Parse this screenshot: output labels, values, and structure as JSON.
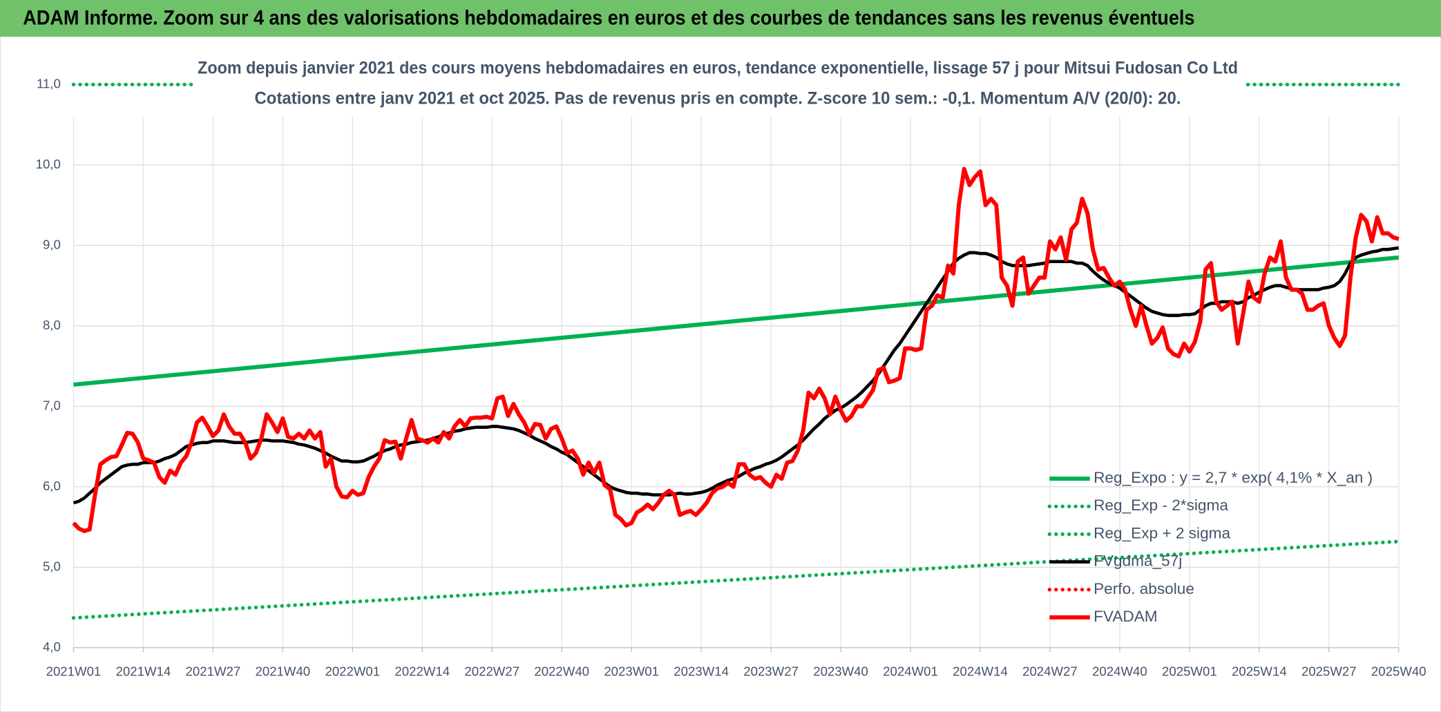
{
  "chart_data": {
    "type": "line",
    "title": "ADAM Informe. Zoom sur 4 ans des valorisations hebdomadaires en euros et des courbes de tendances sans les revenus éventuels",
    "subtitle": [
      "Zoom depuis janvier 2021 des cours moyens hebdomadaires en euros, tendance exponentielle, lissage 57 j pour Mitsui Fudosan Co Ltd",
      "Cotations entre janv 2021 et oct 2025. Pas de revenus pris en compte. Z-score 10 sem.: -0,1. Momentum A/V (20/0): 20."
    ],
    "categories": [
      "2021W01",
      null,
      null,
      null,
      null,
      null,
      null,
      null,
      null,
      null,
      null,
      null,
      null,
      "2021W14",
      null,
      null,
      null,
      null,
      null,
      null,
      null,
      null,
      null,
      null,
      null,
      null,
      "2021W27",
      null,
      null,
      null,
      null,
      null,
      null,
      null,
      null,
      null,
      null,
      null,
      null,
      "2021W40",
      null,
      null,
      null,
      null,
      null,
      null,
      null,
      null,
      null,
      null,
      null,
      null,
      "2022W01",
      null,
      null,
      null,
      null,
      null,
      null,
      null,
      null,
      null,
      null,
      null,
      null,
      "2022W14",
      null,
      null,
      null,
      null,
      null,
      null,
      null,
      null,
      null,
      null,
      null,
      null,
      "2022W27",
      null,
      null,
      null,
      null,
      null,
      null,
      null,
      null,
      null,
      null,
      null,
      null,
      "2022W40",
      null,
      null,
      null,
      null,
      null,
      null,
      null,
      null,
      null,
      null,
      null,
      null,
      "2023W01",
      null,
      null,
      null,
      null,
      null,
      null,
      null,
      null,
      null,
      null,
      null,
      null,
      "2023W14",
      null,
      null,
      null,
      null,
      null,
      null,
      null,
      null,
      null,
      null,
      null,
      null,
      "2023W27",
      null,
      null,
      null,
      null,
      null,
      null,
      null,
      null,
      null,
      null,
      null,
      null,
      "2023W40",
      null,
      null,
      null,
      null,
      null,
      null,
      null,
      null,
      null,
      null,
      null,
      null,
      "2024W01",
      null,
      null,
      null,
      null,
      null,
      null,
      null,
      null,
      null,
      null,
      null,
      null,
      "2024W14",
      null,
      null,
      null,
      null,
      null,
      null,
      null,
      null,
      null,
      null,
      null,
      null,
      "2024W27",
      null,
      null,
      null,
      null,
      null,
      null,
      null,
      null,
      null,
      null,
      null,
      null,
      "2024W40",
      null,
      null,
      null,
      null,
      null,
      null,
      null,
      null,
      null,
      null,
      null,
      null,
      "2025W01",
      null,
      null,
      null,
      null,
      null,
      null,
      null,
      null,
      null,
      null,
      null,
      null,
      "2025W14",
      null,
      null,
      null,
      null,
      null,
      null,
      null,
      null,
      null,
      null,
      null,
      null,
      "2025W27",
      null,
      null,
      null,
      null,
      null,
      null,
      null,
      null,
      null,
      null,
      null,
      null,
      "2025W40"
    ],
    "series": [
      {
        "name": "Reg_Expo : y = 2,7 * exp( 4,1% *  X_an )",
        "color": "#00b050",
        "style": "solid",
        "x": [
          "2021W01",
          "2025W40"
        ],
        "values": [
          7.27,
          8.85
        ]
      },
      {
        "name": "Reg_Exp - 2*sigma",
        "color": "#00b050",
        "style": "dotted",
        "x": [
          "2021W01",
          "2025W40"
        ],
        "values": [
          4.37,
          5.32
        ]
      },
      {
        "name": "Reg_Exp + 2 sigma",
        "color": "#00b050",
        "style": "dotted",
        "x": [
          "2021W01",
          "2025W40"
        ],
        "values": [
          11.0,
          11.0
        ]
      },
      {
        "name": "FVgdma_57j",
        "color": "#000000",
        "style": "solid",
        "values": [
          5.8,
          5.82,
          5.86,
          5.92,
          5.98,
          6.05,
          6.1,
          6.15,
          6.2,
          6.25,
          6.27,
          6.28,
          6.28,
          6.3,
          6.3,
          6.3,
          6.32,
          6.35,
          6.37,
          6.4,
          6.45,
          6.5,
          6.52,
          6.54,
          6.55,
          6.55,
          6.57,
          6.57,
          6.57,
          6.56,
          6.55,
          6.55,
          6.55,
          6.56,
          6.57,
          6.58,
          6.58,
          6.57,
          6.57,
          6.57,
          6.56,
          6.55,
          6.53,
          6.52,
          6.5,
          6.48,
          6.45,
          6.42,
          6.38,
          6.35,
          6.32,
          6.32,
          6.31,
          6.31,
          6.32,
          6.35,
          6.38,
          6.42,
          6.45,
          6.47,
          6.5,
          6.52,
          6.53,
          6.55,
          6.56,
          6.57,
          6.58,
          6.6,
          6.62,
          6.65,
          6.67,
          6.69,
          6.7,
          6.72,
          6.73,
          6.74,
          6.74,
          6.74,
          6.75,
          6.75,
          6.74,
          6.73,
          6.72,
          6.7,
          6.67,
          6.64,
          6.6,
          6.57,
          6.54,
          6.5,
          6.47,
          6.43,
          6.4,
          6.35,
          6.3,
          6.25,
          6.2,
          6.15,
          6.1,
          6.05,
          6.0,
          5.97,
          5.95,
          5.93,
          5.92,
          5.92,
          5.91,
          5.91,
          5.9,
          5.9,
          5.9,
          5.9,
          5.91,
          5.92,
          5.91,
          5.91,
          5.92,
          5.93,
          5.95,
          5.98,
          6.02,
          6.05,
          6.08,
          6.1,
          6.13,
          6.17,
          6.2,
          6.23,
          6.25,
          6.28,
          6.3,
          6.33,
          6.37,
          6.42,
          6.47,
          6.52,
          6.58,
          6.65,
          6.72,
          6.78,
          6.85,
          6.9,
          6.95,
          6.98,
          7.02,
          7.07,
          7.12,
          7.18,
          7.25,
          7.32,
          7.4,
          7.5,
          7.6,
          7.7,
          7.78,
          7.88,
          7.98,
          8.08,
          8.18,
          8.28,
          8.38,
          8.48,
          8.58,
          8.68,
          8.78,
          8.84,
          8.88,
          8.91,
          8.91,
          8.9,
          8.9,
          8.88,
          8.85,
          8.8,
          8.77,
          8.75,
          8.75,
          8.75,
          8.75,
          8.76,
          8.77,
          8.78,
          8.8,
          8.8,
          8.8,
          8.8,
          8.8,
          8.78,
          8.78,
          8.75,
          8.68,
          8.62,
          8.57,
          8.53,
          8.5,
          8.47,
          8.42,
          8.37,
          8.32,
          8.27,
          8.22,
          8.18,
          8.16,
          8.14,
          8.13,
          8.13,
          8.13,
          8.14,
          8.14,
          8.15,
          8.2,
          8.25,
          8.28,
          8.28,
          8.3,
          8.3,
          8.3,
          8.28,
          8.3,
          8.35,
          8.38,
          8.42,
          8.45,
          8.48,
          8.5,
          8.5,
          8.48,
          8.46,
          8.45,
          8.45,
          8.45,
          8.45,
          8.45,
          8.47,
          8.48,
          8.5,
          8.55,
          8.65,
          8.78,
          8.85,
          8.88,
          8.9,
          8.92,
          8.93,
          8.95,
          8.95,
          8.96,
          8.97
        ]
      },
      {
        "name": "Perfo. absolue",
        "color": "#ff0000",
        "style": "dotted"
      },
      {
        "name": "FVADAM",
        "color": "#ff0000",
        "style": "solid",
        "values": [
          5.55,
          5.48,
          5.45,
          5.47,
          5.9,
          6.28,
          6.33,
          6.37,
          6.38,
          6.52,
          6.67,
          6.66,
          6.55,
          6.35,
          6.33,
          6.3,
          6.12,
          6.05,
          6.2,
          6.15,
          6.3,
          6.38,
          6.55,
          6.8,
          6.86,
          6.75,
          6.63,
          6.7,
          6.9,
          6.75,
          6.66,
          6.66,
          6.55,
          6.35,
          6.42,
          6.6,
          6.9,
          6.8,
          6.68,
          6.85,
          6.62,
          6.6,
          6.66,
          6.6,
          6.7,
          6.6,
          6.68,
          6.25,
          6.35,
          6.0,
          5.88,
          5.87,
          5.95,
          5.9,
          5.92,
          6.12,
          6.25,
          6.35,
          6.58,
          6.55,
          6.56,
          6.35,
          6.6,
          6.83,
          6.6,
          6.58,
          6.55,
          6.6,
          6.55,
          6.68,
          6.6,
          6.75,
          6.83,
          6.75,
          6.85,
          6.86,
          6.86,
          6.87,
          6.85,
          7.1,
          7.12,
          6.88,
          7.03,
          6.9,
          6.8,
          6.65,
          6.78,
          6.77,
          6.6,
          6.72,
          6.75,
          6.6,
          6.42,
          6.45,
          6.35,
          6.15,
          6.3,
          6.17,
          6.3,
          6.02,
          5.97,
          5.65,
          5.6,
          5.52,
          5.55,
          5.68,
          5.72,
          5.78,
          5.72,
          5.8,
          5.9,
          5.95,
          5.9,
          5.65,
          5.68,
          5.7,
          5.65,
          5.72,
          5.8,
          5.92,
          5.98,
          6.0,
          6.05,
          6.0,
          6.28,
          6.28,
          6.15,
          6.1,
          6.12,
          6.05,
          6.0,
          6.15,
          6.1,
          6.3,
          6.32,
          6.45,
          6.7,
          7.17,
          7.1,
          7.22,
          7.1,
          6.9,
          7.12,
          6.95,
          6.82,
          6.88,
          7.0,
          7.0,
          7.1,
          7.2,
          7.45,
          7.48,
          7.3,
          7.32,
          7.35,
          7.72,
          7.72,
          7.7,
          7.72,
          8.2,
          8.25,
          8.38,
          8.35,
          8.75,
          8.65,
          9.5,
          9.95,
          9.75,
          9.85,
          9.92,
          9.5,
          9.58,
          9.5,
          8.6,
          8.5,
          8.25,
          8.8,
          8.85,
          8.4,
          8.5,
          8.6,
          8.6,
          9.05,
          8.95,
          9.1,
          8.82,
          9.2,
          9.28,
          9.58,
          9.4,
          8.95,
          8.7,
          8.72,
          8.6,
          8.5,
          8.55,
          8.45,
          8.2,
          8.0,
          8.25,
          8.0,
          7.78,
          7.85,
          7.98,
          7.72,
          7.65,
          7.62,
          7.78,
          7.68,
          7.8,
          8.05,
          8.7,
          8.78,
          8.3,
          8.2,
          8.25,
          8.3,
          7.78,
          8.15,
          8.55,
          8.35,
          8.3,
          8.65,
          8.85,
          8.8,
          9.05,
          8.6,
          8.45,
          8.45,
          8.4,
          8.2,
          8.2,
          8.25,
          8.28,
          8.0,
          7.85,
          7.75,
          7.88,
          8.6,
          9.1,
          9.38,
          9.3,
          9.05,
          9.35,
          9.15,
          9.15,
          9.1,
          9.08
        ]
      }
    ],
    "ylim": [
      4.0,
      11.0
    ],
    "yticks": [
      {
        "value": 4,
        "label": "4,0"
      },
      {
        "value": 5,
        "label": "5,0"
      },
      {
        "value": 6,
        "label": "6,0"
      },
      {
        "value": 7,
        "label": "7,0"
      },
      {
        "value": 8,
        "label": "8,0"
      },
      {
        "value": 9,
        "label": "9,0"
      },
      {
        "value": 10,
        "label": "10,0"
      },
      {
        "value": 11,
        "label": "11,0"
      }
    ],
    "grid": true,
    "legend": "lower right"
  }
}
